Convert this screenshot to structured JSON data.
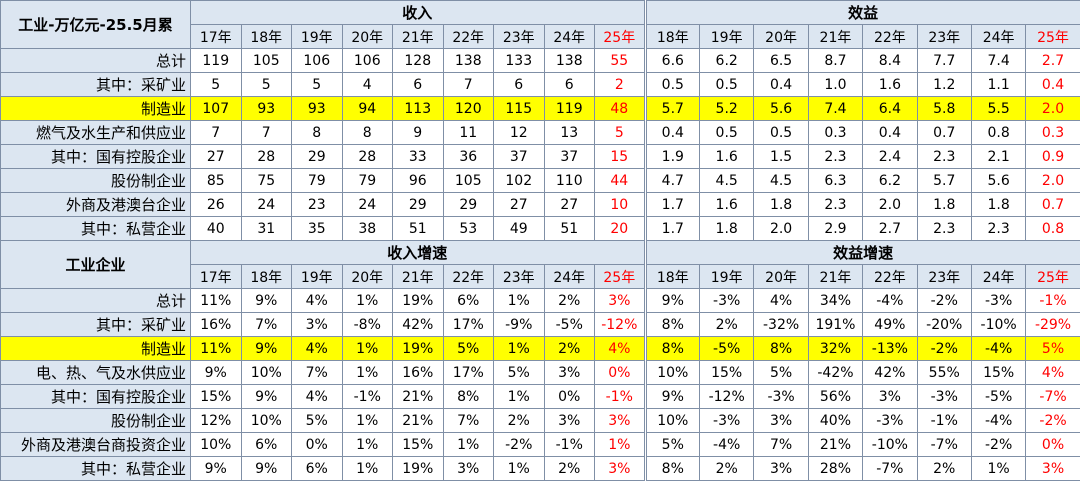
{
  "sections": [
    {
      "corner": "工业-万亿元-25.5月累",
      "groups": [
        {
          "title": "收入",
          "years": [
            "17年",
            "18年",
            "19年",
            "20年",
            "21年",
            "22年",
            "23年",
            "24年",
            "25年"
          ]
        },
        {
          "title": "效益",
          "years": [
            "18年",
            "19年",
            "20年",
            "21年",
            "22年",
            "23年",
            "24年",
            "25年"
          ]
        }
      ],
      "rows": [
        {
          "label": "总计",
          "values": [
            "119",
            "105",
            "106",
            "106",
            "128",
            "138",
            "133",
            "138",
            "55",
            "6.6",
            "6.2",
            "6.5",
            "8.7",
            "8.4",
            "7.7",
            "7.4",
            "2.7"
          ]
        },
        {
          "label": "其中：采矿业",
          "values": [
            "5",
            "5",
            "5",
            "4",
            "6",
            "7",
            "6",
            "6",
            "2",
            "0.5",
            "0.5",
            "0.4",
            "1.0",
            "1.6",
            "1.2",
            "1.1",
            "0.4"
          ]
        },
        {
          "label": "制造业",
          "values": [
            "107",
            "93",
            "93",
            "94",
            "113",
            "120",
            "115",
            "119",
            "48",
            "5.7",
            "5.2",
            "5.6",
            "7.4",
            "6.4",
            "5.8",
            "5.5",
            "2.0"
          ]
        },
        {
          "label": "燃气及水生产和供应业",
          "values": [
            "7",
            "7",
            "8",
            "8",
            "9",
            "11",
            "12",
            "13",
            "5",
            "0.4",
            "0.5",
            "0.5",
            "0.3",
            "0.4",
            "0.7",
            "0.8",
            "0.3"
          ]
        },
        {
          "label": "其中：国有控股企业",
          "values": [
            "27",
            "28",
            "29",
            "28",
            "33",
            "36",
            "37",
            "37",
            "15",
            "1.9",
            "1.6",
            "1.5",
            "2.3",
            "2.4",
            "2.3",
            "2.1",
            "0.9"
          ]
        },
        {
          "label": "股份制企业",
          "values": [
            "85",
            "75",
            "79",
            "79",
            "96",
            "105",
            "102",
            "110",
            "44",
            "4.7",
            "4.5",
            "4.5",
            "6.3",
            "6.2",
            "5.7",
            "5.6",
            "2.0"
          ]
        },
        {
          "label": "外商及港澳台企业",
          "values": [
            "26",
            "24",
            "23",
            "24",
            "29",
            "29",
            "27",
            "27",
            "10",
            "1.7",
            "1.6",
            "1.8",
            "2.3",
            "2.0",
            "1.8",
            "1.8",
            "0.7"
          ]
        },
        {
          "label": "其中：私营企业",
          "values": [
            "40",
            "31",
            "35",
            "38",
            "51",
            "53",
            "49",
            "51",
            "20",
            "1.7",
            "1.8",
            "2.0",
            "2.9",
            "2.7",
            "2.3",
            "2.3",
            "0.8"
          ]
        }
      ]
    },
    {
      "corner": "工业企业",
      "groups": [
        {
          "title": "收入增速",
          "years": [
            "17年",
            "18年",
            "19年",
            "20年",
            "21年",
            "22年",
            "23年",
            "24年",
            "25年"
          ]
        },
        {
          "title": "效益增速",
          "years": [
            "18年",
            "19年",
            "20年",
            "21年",
            "22年",
            "23年",
            "24年",
            "25年"
          ]
        }
      ],
      "rows": [
        {
          "label": "总计",
          "values": [
            "11%",
            "9%",
            "4%",
            "1%",
            "19%",
            "6%",
            "1%",
            "2%",
            "3%",
            "9%",
            "-3%",
            "4%",
            "34%",
            "-4%",
            "-2%",
            "-3%",
            "-1%"
          ]
        },
        {
          "label": "其中：采矿业",
          "values": [
            "16%",
            "7%",
            "3%",
            "-8%",
            "42%",
            "17%",
            "-9%",
            "-5%",
            "-12%",
            "8%",
            "2%",
            "-32%",
            "191%",
            "49%",
            "-20%",
            "-10%",
            "-29%"
          ]
        },
        {
          "label": "制造业",
          "values": [
            "11%",
            "9%",
            "4%",
            "1%",
            "19%",
            "5%",
            "1%",
            "2%",
            "4%",
            "8%",
            "-5%",
            "8%",
            "32%",
            "-13%",
            "-2%",
            "-4%",
            "5%"
          ]
        },
        {
          "label": "电、热、气及水供应业",
          "values": [
            "9%",
            "10%",
            "7%",
            "1%",
            "16%",
            "17%",
            "5%",
            "3%",
            "0%",
            "10%",
            "15%",
            "5%",
            "-42%",
            "42%",
            "55%",
            "15%",
            "4%"
          ]
        },
        {
          "label": "其中：国有控股企业",
          "values": [
            "15%",
            "9%",
            "4%",
            "-1%",
            "21%",
            "8%",
            "1%",
            "0%",
            "-1%",
            "9%",
            "-12%",
            "-3%",
            "56%",
            "3%",
            "-3%",
            "-5%",
            "-7%"
          ]
        },
        {
          "label": "股份制企业",
          "values": [
            "12%",
            "10%",
            "5%",
            "1%",
            "21%",
            "7%",
            "2%",
            "3%",
            "3%",
            "10%",
            "-3%",
            "3%",
            "40%",
            "-3%",
            "-1%",
            "-4%",
            "-2%"
          ]
        },
        {
          "label": "外商及港澳台商投资企业",
          "values": [
            "10%",
            "6%",
            "0%",
            "1%",
            "15%",
            "1%",
            "-2%",
            "-1%",
            "1%",
            "5%",
            "-4%",
            "7%",
            "21%",
            "-10%",
            "-7%",
            "-2%",
            "0%"
          ]
        },
        {
          "label": "其中：私营企业",
          "values": [
            "9%",
            "9%",
            "6%",
            "1%",
            "19%",
            "3%",
            "1%",
            "2%",
            "3%",
            "8%",
            "2%",
            "3%",
            "28%",
            "-7%",
            "2%",
            "1%",
            "3%"
          ]
        }
      ]
    }
  ]
}
